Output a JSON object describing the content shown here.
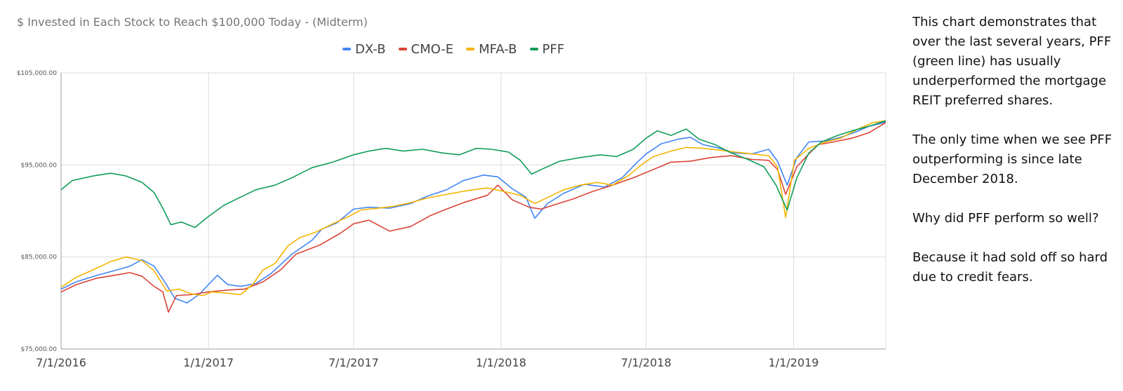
{
  "chart_data": {
    "type": "line",
    "title": "$ Invested in Each Stock to Reach $100,000 Today - (Midterm)",
    "xlabel": "",
    "ylabel": "",
    "ylim": [
      75000,
      105000
    ],
    "xlim": [
      "7/1/2016",
      "4/26/2019"
    ],
    "x_ticks": [
      "7/1/2016",
      "1/1/2017",
      "7/1/2017",
      "1/1/2018",
      "7/1/2018",
      "1/1/2019"
    ],
    "y_ticks": [
      "$75,000.00",
      "$85,000.00",
      "$95,000.00",
      "$105,000.00"
    ],
    "y_tick_values": [
      75000,
      85000,
      95000,
      105000
    ],
    "grid": true,
    "legend_position": "top",
    "series": [
      {
        "name": "DX-B",
        "color": "#4285F4",
        "points": [
          [
            "2016-07-01",
            81500
          ],
          [
            "2016-07-20",
            82300
          ],
          [
            "2016-08-15",
            83000
          ],
          [
            "2016-09-05",
            83500
          ],
          [
            "2016-09-25",
            84000
          ],
          [
            "2016-10-10",
            84700
          ],
          [
            "2016-10-25",
            84000
          ],
          [
            "2016-11-08",
            82200
          ],
          [
            "2016-11-20",
            80500
          ],
          [
            "2016-12-05",
            80000
          ],
          [
            "2016-12-20",
            80900
          ],
          [
            "2017-01-01",
            82000
          ],
          [
            "2017-01-12",
            83000
          ],
          [
            "2017-01-25",
            82000
          ],
          [
            "2017-02-10",
            81800
          ],
          [
            "2017-03-01",
            82100
          ],
          [
            "2017-03-20",
            83200
          ],
          [
            "2017-04-15",
            85300
          ],
          [
            "2017-05-10",
            86800
          ],
          [
            "2017-05-22",
            88000
          ],
          [
            "2017-06-10",
            88700
          ],
          [
            "2017-07-01",
            90200
          ],
          [
            "2017-07-20",
            90400
          ],
          [
            "2017-08-15",
            90300
          ],
          [
            "2017-09-10",
            90800
          ],
          [
            "2017-10-01",
            91600
          ],
          [
            "2017-10-25",
            92300
          ],
          [
            "2017-11-15",
            93300
          ],
          [
            "2017-12-10",
            93900
          ],
          [
            "2017-12-28",
            93700
          ],
          [
            "2018-01-15",
            92400
          ],
          [
            "2018-02-01",
            91500
          ],
          [
            "2018-02-12",
            89200
          ],
          [
            "2018-02-28",
            90800
          ],
          [
            "2018-03-20",
            91900
          ],
          [
            "2018-04-15",
            92900
          ],
          [
            "2018-05-10",
            92600
          ],
          [
            "2018-06-01",
            93600
          ],
          [
            "2018-06-20",
            95300
          ],
          [
            "2018-07-01",
            96200
          ],
          [
            "2018-07-20",
            97300
          ],
          [
            "2018-08-10",
            97800
          ],
          [
            "2018-08-25",
            98000
          ],
          [
            "2018-09-10",
            97200
          ],
          [
            "2018-10-01",
            96800
          ],
          [
            "2018-10-20",
            96300
          ],
          [
            "2018-11-10",
            96200
          ],
          [
            "2018-12-01",
            96700
          ],
          [
            "2018-12-12",
            95400
          ],
          [
            "2018-12-24",
            92800
          ],
          [
            "2019-01-05",
            95800
          ],
          [
            "2019-01-20",
            97500
          ],
          [
            "2019-02-10",
            97600
          ],
          [
            "2019-03-01",
            98000
          ],
          [
            "2019-03-20",
            98600
          ],
          [
            "2019-04-05",
            99200
          ],
          [
            "2019-04-20",
            99500
          ],
          [
            "2019-04-26",
            99700
          ]
        ]
      },
      {
        "name": "CMO-E",
        "color": "#DB4437",
        "points": [
          [
            "2016-07-01",
            81200
          ],
          [
            "2016-07-20",
            82000
          ],
          [
            "2016-08-15",
            82700
          ],
          [
            "2016-09-05",
            83000
          ],
          [
            "2016-09-25",
            83300
          ],
          [
            "2016-10-10",
            82900
          ],
          [
            "2016-10-25",
            81800
          ],
          [
            "2016-11-05",
            81200
          ],
          [
            "2016-11-12",
            79000
          ],
          [
            "2016-11-22",
            80800
          ],
          [
            "2016-12-10",
            80900
          ],
          [
            "2017-01-01",
            81200
          ],
          [
            "2017-01-25",
            81400
          ],
          [
            "2017-02-15",
            81500
          ],
          [
            "2017-03-10",
            82300
          ],
          [
            "2017-04-01",
            83600
          ],
          [
            "2017-04-20",
            85300
          ],
          [
            "2017-05-20",
            86300
          ],
          [
            "2017-06-15",
            87600
          ],
          [
            "2017-07-01",
            88600
          ],
          [
            "2017-07-20",
            89000
          ],
          [
            "2017-08-15",
            87800
          ],
          [
            "2017-09-10",
            88300
          ],
          [
            "2017-10-05",
            89500
          ],
          [
            "2017-10-25",
            90200
          ],
          [
            "2017-11-15",
            90900
          ],
          [
            "2017-12-15",
            91700
          ],
          [
            "2017-12-28",
            92800
          ],
          [
            "2018-01-15",
            91200
          ],
          [
            "2018-02-05",
            90400
          ],
          [
            "2018-02-20",
            90200
          ],
          [
            "2018-03-10",
            90700
          ],
          [
            "2018-04-01",
            91300
          ],
          [
            "2018-04-25",
            92100
          ],
          [
            "2018-05-20",
            92800
          ],
          [
            "2018-06-15",
            93600
          ],
          [
            "2018-07-10",
            94500
          ],
          [
            "2018-08-01",
            95300
          ],
          [
            "2018-08-25",
            95400
          ],
          [
            "2018-09-20",
            95800
          ],
          [
            "2018-10-15",
            96000
          ],
          [
            "2018-11-10",
            95600
          ],
          [
            "2018-12-01",
            95500
          ],
          [
            "2018-12-12",
            94500
          ],
          [
            "2018-12-22",
            91800
          ],
          [
            "2019-01-05",
            94800
          ],
          [
            "2019-01-20",
            96200
          ],
          [
            "2019-02-01",
            97200
          ],
          [
            "2019-02-20",
            97500
          ],
          [
            "2019-03-15",
            97900
          ],
          [
            "2019-04-05",
            98500
          ],
          [
            "2019-04-26",
            99600
          ]
        ]
      },
      {
        "name": "MFA-B",
        "color": "#F4B400",
        "points": [
          [
            "2016-07-01",
            81700
          ],
          [
            "2016-07-20",
            82800
          ],
          [
            "2016-08-10",
            83600
          ],
          [
            "2016-09-01",
            84500
          ],
          [
            "2016-09-20",
            85000
          ],
          [
            "2016-10-10",
            84600
          ],
          [
            "2016-10-25",
            83500
          ],
          [
            "2016-11-10",
            81300
          ],
          [
            "2016-11-25",
            81500
          ],
          [
            "2016-12-10",
            81000
          ],
          [
            "2016-12-25",
            80800
          ],
          [
            "2017-01-05",
            81200
          ],
          [
            "2017-01-20",
            81100
          ],
          [
            "2017-02-10",
            80900
          ],
          [
            "2017-02-25",
            82000
          ],
          [
            "2017-03-10",
            83600
          ],
          [
            "2017-03-25",
            84300
          ],
          [
            "2017-04-10",
            86200
          ],
          [
            "2017-04-25",
            87100
          ],
          [
            "2017-05-15",
            87700
          ],
          [
            "2017-06-05",
            88600
          ],
          [
            "2017-06-25",
            89400
          ],
          [
            "2017-07-10",
            90100
          ],
          [
            "2017-08-01",
            90300
          ],
          [
            "2017-08-20",
            90500
          ],
          [
            "2017-09-10",
            90900
          ],
          [
            "2017-10-01",
            91400
          ],
          [
            "2017-10-25",
            91800
          ],
          [
            "2017-11-20",
            92200
          ],
          [
            "2017-12-15",
            92500
          ],
          [
            "2018-01-05",
            92100
          ],
          [
            "2018-01-25",
            91700
          ],
          [
            "2018-02-12",
            90800
          ],
          [
            "2018-03-01",
            91500
          ],
          [
            "2018-03-20",
            92300
          ],
          [
            "2018-04-10",
            92800
          ],
          [
            "2018-05-01",
            93100
          ],
          [
            "2018-05-20",
            92800
          ],
          [
            "2018-06-10",
            93900
          ],
          [
            "2018-06-25",
            95000
          ],
          [
            "2018-07-10",
            95900
          ],
          [
            "2018-08-01",
            96500
          ],
          [
            "2018-08-20",
            96900
          ],
          [
            "2018-09-10",
            96800
          ],
          [
            "2018-10-01",
            96600
          ],
          [
            "2018-10-20",
            96400
          ],
          [
            "2018-11-10",
            96200
          ],
          [
            "2018-12-01",
            96000
          ],
          [
            "2018-12-12",
            94800
          ],
          [
            "2018-12-22",
            89300
          ],
          [
            "2019-01-02",
            95500
          ],
          [
            "2019-01-20",
            96800
          ],
          [
            "2019-02-10",
            97500
          ],
          [
            "2019-03-01",
            97900
          ],
          [
            "2019-03-20",
            98800
          ],
          [
            "2019-04-10",
            99600
          ],
          [
            "2019-04-26",
            99800
          ]
        ]
      },
      {
        "name": "PFF",
        "color": "#0F9D58",
        "points": [
          [
            "2016-07-01",
            92300
          ],
          [
            "2016-07-15",
            93300
          ],
          [
            "2016-08-10",
            93800
          ],
          [
            "2016-09-01",
            94100
          ],
          [
            "2016-09-20",
            93800
          ],
          [
            "2016-10-10",
            93100
          ],
          [
            "2016-10-25",
            92000
          ],
          [
            "2016-11-05",
            90300
          ],
          [
            "2016-11-15",
            88500
          ],
          [
            "2016-11-28",
            88800
          ],
          [
            "2016-12-15",
            88200
          ],
          [
            "2017-01-01",
            89400
          ],
          [
            "2017-01-20",
            90600
          ],
          [
            "2017-02-10",
            91500
          ],
          [
            "2017-03-01",
            92300
          ],
          [
            "2017-03-25",
            92800
          ],
          [
            "2017-04-15",
            93600
          ],
          [
            "2017-05-10",
            94700
          ],
          [
            "2017-06-05",
            95300
          ],
          [
            "2017-07-01",
            96100
          ],
          [
            "2017-07-20",
            96500
          ],
          [
            "2017-08-10",
            96800
          ],
          [
            "2017-09-01",
            96500
          ],
          [
            "2017-09-25",
            96700
          ],
          [
            "2017-10-20",
            96300
          ],
          [
            "2017-11-10",
            96100
          ],
          [
            "2017-12-01",
            96800
          ],
          [
            "2017-12-20",
            96700
          ],
          [
            "2018-01-10",
            96400
          ],
          [
            "2018-01-25",
            95500
          ],
          [
            "2018-02-08",
            94000
          ],
          [
            "2018-02-25",
            94700
          ],
          [
            "2018-03-15",
            95400
          ],
          [
            "2018-04-10",
            95800
          ],
          [
            "2018-05-05",
            96100
          ],
          [
            "2018-05-25",
            95900
          ],
          [
            "2018-06-15",
            96700
          ],
          [
            "2018-07-01",
            97900
          ],
          [
            "2018-07-15",
            98700
          ],
          [
            "2018-08-01",
            98200
          ],
          [
            "2018-08-20",
            98900
          ],
          [
            "2018-09-05",
            97800
          ],
          [
            "2018-09-25",
            97200
          ],
          [
            "2018-10-15",
            96300
          ],
          [
            "2018-11-05",
            95600
          ],
          [
            "2018-11-25",
            94800
          ],
          [
            "2018-12-10",
            92800
          ],
          [
            "2018-12-24",
            90100
          ],
          [
            "2019-01-05",
            93600
          ],
          [
            "2019-01-20",
            96300
          ],
          [
            "2019-02-05",
            97500
          ],
          [
            "2019-02-25",
            98200
          ],
          [
            "2019-03-15",
            98700
          ],
          [
            "2019-04-05",
            99200
          ],
          [
            "2019-04-26",
            99800
          ]
        ]
      }
    ]
  },
  "commentary": {
    "p1": "This chart demonstrates that over the last several years, PFF (green line) has usually underperformed the mortgage REIT preferred shares.",
    "p2": "The only time when we see PFF outperforming is since late December 2018.",
    "p3": "Why did PFF perform so well?",
    "p4": "Because it had sold off so hard due to credit fears."
  }
}
